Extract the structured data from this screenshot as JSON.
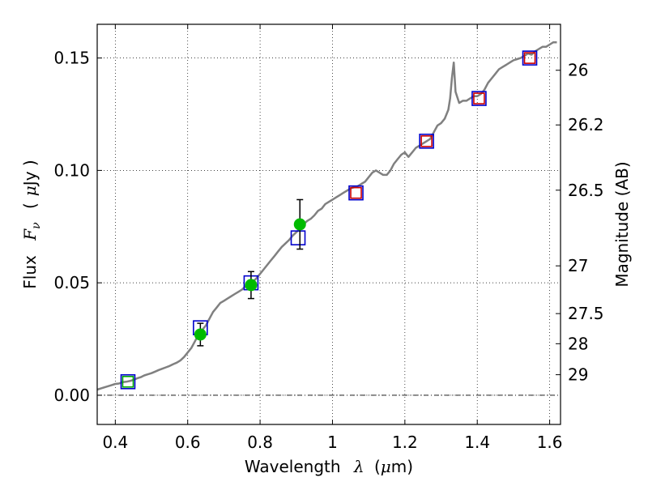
{
  "chart_data": {
    "type": "scatter",
    "title": "",
    "xlabel": "Wavelength",
    "xlabel_symbol": "λ",
    "xlabel_unit_prefix": "(",
    "xlabel_unit_mu": "μ",
    "xlabel_unit_suffix": "m)",
    "ylabel": "Flux",
    "ylabel_symbol_main": "F",
    "ylabel_symbol_sub": "ν",
    "ylabel_unit_prefix": "(",
    "ylabel_unit_mu": "μ",
    "ylabel_unit_suffix": "Jy )",
    "y2label": "Magnitude (AB)",
    "xlim": [
      0.35,
      1.63
    ],
    "ylim": [
      -0.013,
      0.165
    ],
    "grid": true,
    "legend": "none",
    "x_ticks": [
      {
        "value": 0.4,
        "label": "0.4"
      },
      {
        "value": 0.6,
        "label": "0.6"
      },
      {
        "value": 0.8,
        "label": "0.8"
      },
      {
        "value": 1.0,
        "label": "1"
      },
      {
        "value": 1.2,
        "label": "1.2"
      },
      {
        "value": 1.4,
        "label": "1.4"
      },
      {
        "value": 1.6,
        "label": "1.6"
      }
    ],
    "y_ticks": [
      {
        "value": 0.0,
        "label": "0.00"
      },
      {
        "value": 0.05,
        "label": "0.05"
      },
      {
        "value": 0.1,
        "label": "0.10"
      },
      {
        "value": 0.15,
        "label": "0.15"
      }
    ],
    "y2_ticks": [
      {
        "value": 26,
        "label": "26"
      },
      {
        "value": 26.2,
        "label": "26.2"
      },
      {
        "value": 26.5,
        "label": "26.5"
      },
      {
        "value": 27,
        "label": "27"
      },
      {
        "value": 27.5,
        "label": "27.5"
      },
      {
        "value": 28,
        "label": "28"
      },
      {
        "value": 29,
        "label": "29"
      }
    ],
    "series": [
      {
        "kind": "line",
        "color": "#808080",
        "points": [
          [
            0.35,
            0.0025
          ],
          [
            0.36,
            0.003
          ],
          [
            0.37,
            0.0035
          ],
          [
            0.38,
            0.004
          ],
          [
            0.39,
            0.0045
          ],
          [
            0.4,
            0.005
          ],
          [
            0.41,
            0.0052
          ],
          [
            0.42,
            0.0058
          ],
          [
            0.43,
            0.006
          ],
          [
            0.44,
            0.0063
          ],
          [
            0.45,
            0.0068
          ],
          [
            0.46,
            0.0075
          ],
          [
            0.47,
            0.008
          ],
          [
            0.48,
            0.0088
          ],
          [
            0.49,
            0.0093
          ],
          [
            0.5,
            0.0098
          ],
          [
            0.51,
            0.0105
          ],
          [
            0.52,
            0.0112
          ],
          [
            0.53,
            0.0118
          ],
          [
            0.54,
            0.0124
          ],
          [
            0.55,
            0.013
          ],
          [
            0.56,
            0.0138
          ],
          [
            0.57,
            0.0145
          ],
          [
            0.58,
            0.0155
          ],
          [
            0.59,
            0.017
          ],
          [
            0.6,
            0.019
          ],
          [
            0.61,
            0.021
          ],
          [
            0.62,
            0.024
          ],
          [
            0.63,
            0.027
          ],
          [
            0.64,
            0.029
          ],
          [
            0.65,
            0.031
          ],
          [
            0.66,
            0.034
          ],
          [
            0.67,
            0.037
          ],
          [
            0.68,
            0.039
          ],
          [
            0.69,
            0.041
          ],
          [
            0.7,
            0.042
          ],
          [
            0.71,
            0.043
          ],
          [
            0.72,
            0.044
          ],
          [
            0.73,
            0.045
          ],
          [
            0.74,
            0.046
          ],
          [
            0.75,
            0.047
          ],
          [
            0.76,
            0.0485
          ],
          [
            0.77,
            0.0495
          ],
          [
            0.78,
            0.0505
          ],
          [
            0.79,
            0.052
          ],
          [
            0.8,
            0.054
          ],
          [
            0.81,
            0.056
          ],
          [
            0.82,
            0.058
          ],
          [
            0.83,
            0.06
          ],
          [
            0.84,
            0.062
          ],
          [
            0.85,
            0.064
          ],
          [
            0.86,
            0.066
          ],
          [
            0.87,
            0.0675
          ],
          [
            0.88,
            0.069
          ],
          [
            0.89,
            0.071
          ],
          [
            0.9,
            0.0725
          ],
          [
            0.91,
            0.074
          ],
          [
            0.92,
            0.076
          ],
          [
            0.93,
            0.0775
          ],
          [
            0.94,
            0.0785
          ],
          [
            0.95,
            0.08
          ],
          [
            0.96,
            0.082
          ],
          [
            0.97,
            0.083
          ],
          [
            0.98,
            0.085
          ],
          [
            0.99,
            0.086
          ],
          [
            1.0,
            0.087
          ],
          [
            1.01,
            0.088
          ],
          [
            1.02,
            0.089
          ],
          [
            1.03,
            0.09
          ],
          [
            1.04,
            0.091
          ],
          [
            1.05,
            0.092
          ],
          [
            1.06,
            0.0925
          ],
          [
            1.07,
            0.093
          ],
          [
            1.08,
            0.094
          ],
          [
            1.09,
            0.095
          ],
          [
            1.1,
            0.097
          ],
          [
            1.11,
            0.099
          ],
          [
            1.12,
            0.1
          ],
          [
            1.13,
            0.099
          ],
          [
            1.14,
            0.098
          ],
          [
            1.15,
            0.098
          ],
          [
            1.16,
            0.1
          ],
          [
            1.17,
            0.103
          ],
          [
            1.18,
            0.105
          ],
          [
            1.19,
            0.107
          ],
          [
            1.2,
            0.108
          ],
          [
            1.21,
            0.106
          ],
          [
            1.22,
            0.108
          ],
          [
            1.23,
            0.11
          ],
          [
            1.24,
            0.111
          ],
          [
            1.25,
            0.112
          ],
          [
            1.26,
            0.113
          ],
          [
            1.27,
            0.114
          ],
          [
            1.28,
            0.117
          ],
          [
            1.29,
            0.12
          ],
          [
            1.3,
            0.121
          ],
          [
            1.31,
            0.123
          ],
          [
            1.32,
            0.127
          ],
          [
            1.325,
            0.132
          ],
          [
            1.33,
            0.141
          ],
          [
            1.335,
            0.148
          ],
          [
            1.34,
            0.135
          ],
          [
            1.35,
            0.13
          ],
          [
            1.36,
            0.131
          ],
          [
            1.37,
            0.131
          ],
          [
            1.38,
            0.132
          ],
          [
            1.39,
            0.133
          ],
          [
            1.4,
            0.133
          ],
          [
            1.41,
            0.134
          ],
          [
            1.42,
            0.136
          ],
          [
            1.43,
            0.139
          ],
          [
            1.44,
            0.141
          ],
          [
            1.45,
            0.143
          ],
          [
            1.46,
            0.145
          ],
          [
            1.47,
            0.146
          ],
          [
            1.48,
            0.147
          ],
          [
            1.49,
            0.148
          ],
          [
            1.5,
            0.149
          ],
          [
            1.51,
            0.1495
          ],
          [
            1.52,
            0.15
          ],
          [
            1.53,
            0.151
          ],
          [
            1.54,
            0.152
          ],
          [
            1.55,
            0.1515
          ],
          [
            1.56,
            0.153
          ],
          [
            1.57,
            0.154
          ],
          [
            1.58,
            0.155
          ],
          [
            1.59,
            0.155
          ],
          [
            1.6,
            0.156
          ],
          [
            1.61,
            0.157
          ],
          [
            1.62,
            0.157
          ]
        ]
      },
      {
        "kind": "squares",
        "color": "#0000cc",
        "points": [
          [
            0.435,
            0.006
          ],
          [
            0.635,
            0.03
          ],
          [
            0.775,
            0.05
          ],
          [
            0.905,
            0.07
          ],
          [
            1.065,
            0.09
          ],
          [
            1.26,
            0.113
          ],
          [
            1.405,
            0.132
          ],
          [
            1.545,
            0.15
          ]
        ]
      },
      {
        "kind": "squares",
        "color": "#cc0000",
        "points": [
          [
            1.065,
            0.09
          ],
          [
            1.26,
            0.113
          ],
          [
            1.405,
            0.132
          ],
          [
            1.545,
            0.15
          ]
        ]
      },
      {
        "kind": "squares",
        "color": "#00aa00",
        "points": [
          [
            0.435,
            0.006
          ]
        ]
      },
      {
        "kind": "errorbar-points",
        "color": "#00bb00",
        "points": [
          {
            "x": 0.635,
            "y": 0.027,
            "yerr": 0.005
          },
          {
            "x": 0.775,
            "y": 0.049,
            "yerr": 0.006
          },
          {
            "x": 0.91,
            "y": 0.076,
            "yerr": 0.011
          }
        ]
      }
    ]
  }
}
